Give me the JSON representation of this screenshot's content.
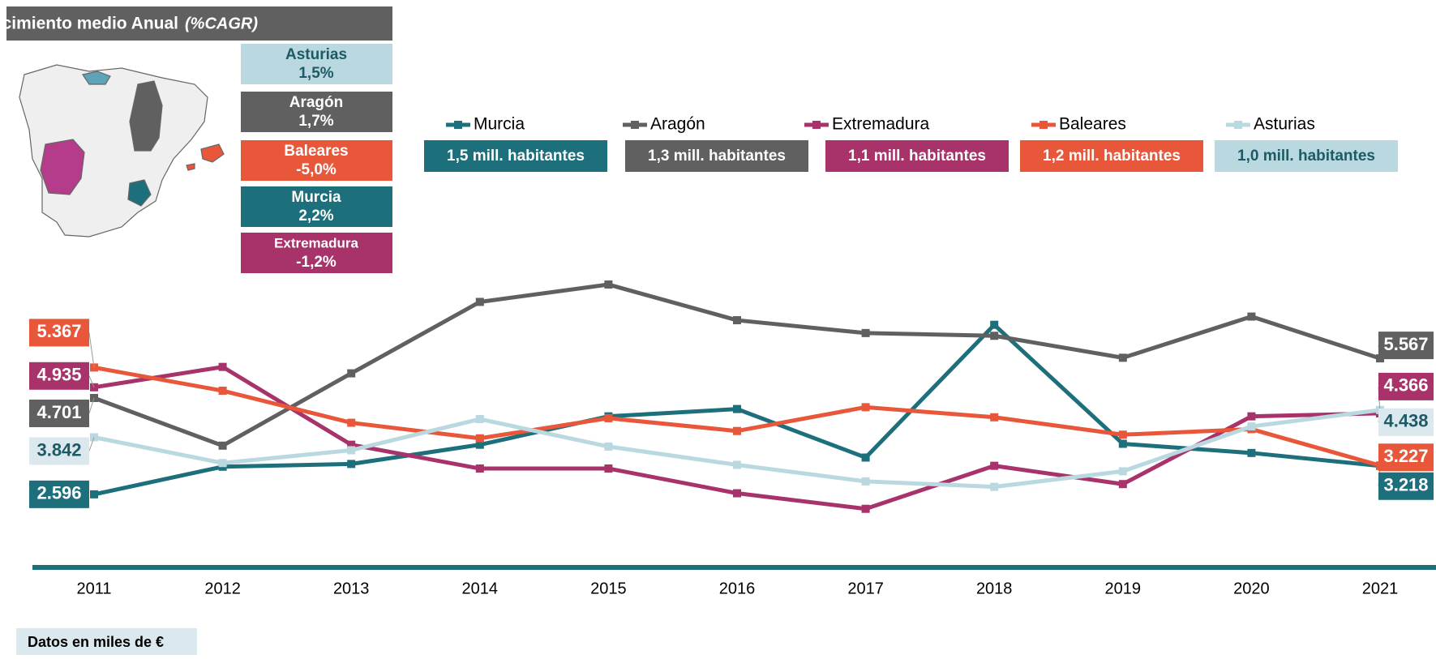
{
  "header": {
    "title": "Crecimiento medio Anual",
    "subtitle": "(%CAGR)"
  },
  "regions": [
    {
      "name": "Asturias",
      "cagr": "1,5%"
    },
    {
      "name": "Aragón",
      "cagr": "1,7%"
    },
    {
      "name": "Baleares",
      "cagr": "-5,0%"
    },
    {
      "name": "Murcia",
      "cagr": "2,2%"
    },
    {
      "name": "Extremadura",
      "cagr": "-1,2%"
    }
  ],
  "footer": "Datos en miles de €",
  "chart_data": {
    "type": "line",
    "categories": [
      "2011",
      "2012",
      "2013",
      "2014",
      "2015",
      "2016",
      "2017",
      "2018",
      "2019",
      "2020",
      "2021"
    ],
    "ylim": [
      1000,
      7800
    ],
    "series": [
      {
        "name": "Murcia",
        "population": "1,5 mill. habitantes",
        "color": "#1e6f7c",
        "values": [
          2596,
          3200,
          3260,
          3680,
          4300,
          4460,
          3400,
          6300,
          3700,
          3500,
          3218
        ],
        "value_labels": [
          "2.596",
          null,
          null,
          null,
          null,
          null,
          null,
          null,
          null,
          null,
          "3.218"
        ]
      },
      {
        "name": "Aragón",
        "population": "1,3 mill. habitantes",
        "color": "#606060",
        "values": [
          4701,
          3660,
          5240,
          6800,
          7180,
          6400,
          6120,
          6060,
          5580,
          6480,
          5567
        ],
        "value_labels": [
          "4.701",
          null,
          null,
          null,
          null,
          null,
          null,
          null,
          null,
          null,
          "5.567"
        ]
      },
      {
        "name": "Extremadura",
        "population": "1,1 mill. habitantes",
        "color": "#a8336a",
        "values": [
          4935,
          5380,
          3680,
          3160,
          3160,
          2620,
          2280,
          3220,
          2820,
          4300,
          4366
        ],
        "value_labels": [
          "4.935",
          null,
          null,
          null,
          null,
          null,
          null,
          null,
          null,
          null,
          "4.366"
        ]
      },
      {
        "name": "Baleares",
        "population": "1,2 mill. habitantes",
        "color": "#e8573a",
        "values": [
          5367,
          4860,
          4160,
          3820,
          4260,
          3980,
          4500,
          4280,
          3900,
          4020,
          3227
        ],
        "value_labels": [
          "5.367",
          null,
          null,
          null,
          null,
          null,
          null,
          null,
          null,
          null,
          "3.227"
        ]
      },
      {
        "name": "Asturias",
        "population": "1,0 mill. habitantes",
        "color": "#b9d8e0",
        "values": [
          3842,
          3280,
          3560,
          4240,
          3640,
          3240,
          2880,
          2760,
          3100,
          4080,
          4438
        ],
        "value_labels": [
          "3.842",
          null,
          null,
          null,
          null,
          null,
          null,
          null,
          null,
          null,
          "4.438"
        ]
      }
    ]
  }
}
